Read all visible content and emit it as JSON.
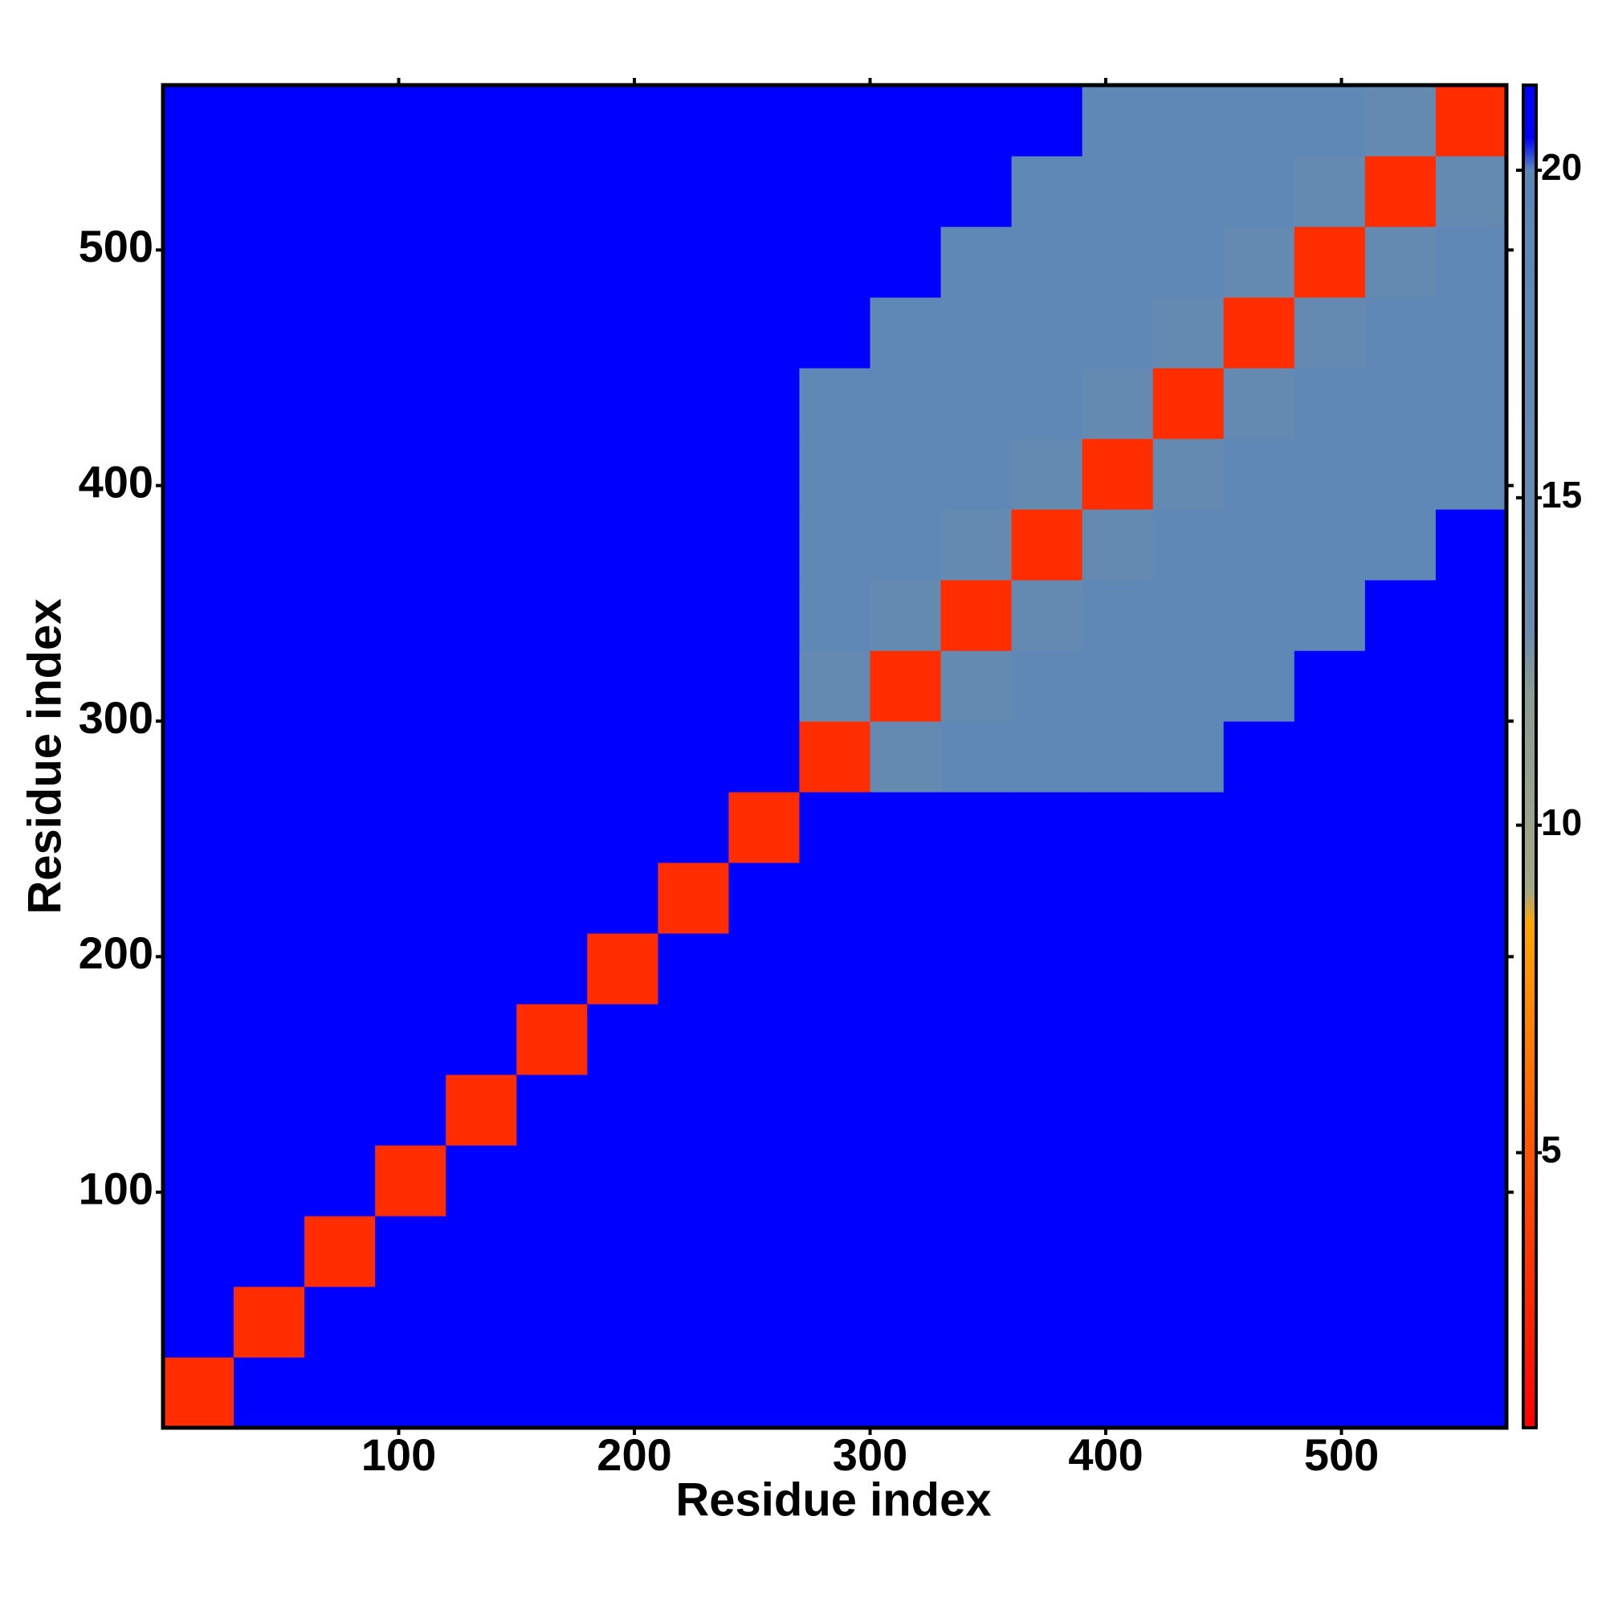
{
  "chart_data": {
    "type": "heatmap",
    "x_label": "Residue index",
    "y_label": "Residue index",
    "xlim": [
      0,
      570
    ],
    "ylim": [
      0,
      570
    ],
    "xticks": [
      100,
      200,
      300,
      400,
      500
    ],
    "yticks": [
      100,
      200,
      300,
      400,
      500
    ],
    "x_edges": [
      0,
      30,
      60,
      90,
      120,
      150,
      180,
      210,
      240,
      270,
      300,
      330,
      360,
      390,
      420,
      450,
      480,
      510,
      540,
      570
    ],
    "y_edges": [
      0,
      30,
      60,
      90,
      120,
      150,
      180,
      210,
      240,
      270,
      300,
      330,
      360,
      390,
      420,
      450,
      480,
      510,
      540,
      570
    ],
    "z": [
      [
        3,
        21,
        21,
        21,
        21,
        21,
        21,
        21,
        21,
        21,
        21,
        21,
        21,
        21,
        21,
        21,
        21,
        21,
        21
      ],
      [
        21,
        3,
        21,
        21,
        21,
        21,
        21,
        21,
        21,
        21,
        21,
        21,
        21,
        21,
        21,
        21,
        21,
        21,
        21
      ],
      [
        21,
        21,
        3,
        21,
        21,
        21,
        21,
        21,
        21,
        21,
        21,
        21,
        21,
        21,
        21,
        21,
        21,
        21,
        21
      ],
      [
        21,
        21,
        21,
        3,
        21,
        21,
        21,
        21,
        21,
        21,
        21,
        21,
        21,
        21,
        21,
        21,
        21,
        21,
        21
      ],
      [
        21,
        21,
        21,
        21,
        3,
        21,
        21,
        21,
        21,
        21,
        21,
        21,
        21,
        21,
        21,
        21,
        21,
        21,
        21
      ],
      [
        21,
        21,
        21,
        21,
        21,
        3,
        21,
        21,
        21,
        21,
        21,
        21,
        21,
        21,
        21,
        21,
        21,
        21,
        21
      ],
      [
        21,
        21,
        21,
        21,
        21,
        21,
        3,
        21,
        21,
        21,
        21,
        21,
        21,
        21,
        21,
        21,
        21,
        21,
        21
      ],
      [
        21,
        21,
        21,
        21,
        21,
        21,
        21,
        3,
        21,
        21,
        21,
        21,
        21,
        21,
        21,
        21,
        21,
        21,
        21
      ],
      [
        21,
        21,
        21,
        21,
        21,
        21,
        21,
        21,
        3,
        21,
        21,
        21,
        21,
        21,
        21,
        21,
        21,
        21,
        21
      ],
      [
        21,
        21,
        21,
        21,
        21,
        21,
        21,
        21,
        21,
        3,
        15,
        18,
        18,
        18,
        18,
        21,
        21,
        21,
        21
      ],
      [
        21,
        21,
        21,
        21,
        21,
        21,
        21,
        21,
        21,
        15,
        3,
        15,
        18,
        18,
        18,
        18,
        21,
        21,
        21
      ],
      [
        21,
        21,
        21,
        21,
        21,
        21,
        21,
        21,
        21,
        18,
        15,
        3,
        15,
        18,
        18,
        18,
        18,
        21,
        21
      ],
      [
        21,
        21,
        21,
        21,
        21,
        21,
        21,
        21,
        21,
        18,
        18,
        15,
        3,
        15,
        18,
        18,
        18,
        18,
        21
      ],
      [
        21,
        21,
        21,
        21,
        21,
        21,
        21,
        21,
        21,
        18,
        18,
        18,
        15,
        3,
        15,
        18,
        18,
        18,
        18
      ],
      [
        21,
        21,
        21,
        21,
        21,
        21,
        21,
        21,
        21,
        18,
        18,
        18,
        18,
        15,
        3,
        15,
        18,
        18,
        18
      ],
      [
        21,
        21,
        21,
        21,
        21,
        21,
        21,
        21,
        21,
        21,
        18,
        18,
        18,
        18,
        15,
        3,
        15,
        18,
        18
      ],
      [
        21,
        21,
        21,
        21,
        21,
        21,
        21,
        21,
        21,
        21,
        21,
        18,
        18,
        18,
        18,
        15,
        3,
        15,
        18
      ],
      [
        21,
        21,
        21,
        21,
        21,
        21,
        21,
        21,
        21,
        21,
        21,
        21,
        18,
        18,
        18,
        18,
        15,
        3,
        15
      ],
      [
        21,
        21,
        21,
        21,
        21,
        21,
        21,
        21,
        21,
        21,
        21,
        21,
        21,
        18,
        18,
        18,
        18,
        15,
        3
      ]
    ],
    "clim": [
      0.8,
      21.3
    ],
    "cticks": [
      5,
      10,
      15,
      20
    ],
    "colorscale": [
      [
        0.8,
        "#ff0000"
      ],
      [
        5,
        "#ff5500"
      ],
      [
        8.5,
        "#ffa500"
      ],
      [
        9,
        "#a4a884"
      ],
      [
        12,
        "#8a9c94"
      ],
      [
        13,
        "#6a8cb0"
      ],
      [
        20,
        "#5a86b8"
      ],
      [
        20.5,
        "#0000ff"
      ],
      [
        21.3,
        "#0000ff"
      ]
    ]
  }
}
